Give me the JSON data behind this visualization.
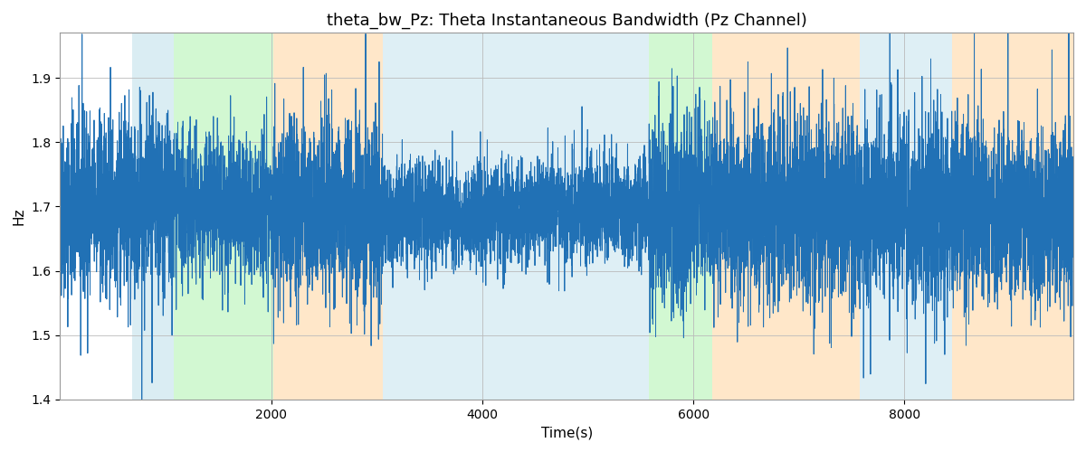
{
  "title": "theta_bw_Pz: Theta Instantaneous Bandwidth (Pz Channel)",
  "xlabel": "Time(s)",
  "ylabel": "Hz",
  "ylim": [
    1.4,
    1.97
  ],
  "xlim": [
    0,
    9600
  ],
  "line_color": "#2171b5",
  "line_width": 0.7,
  "background_color": "#ffffff",
  "grid_color": "#bbbbbb",
  "title_fontsize": 13,
  "label_fontsize": 11,
  "colored_regions": [
    {
      "xmin": 680,
      "xmax": 1080,
      "color": "#add8e6",
      "alpha": 0.45
    },
    {
      "xmin": 1080,
      "xmax": 2020,
      "color": "#90ee90",
      "alpha": 0.4
    },
    {
      "xmin": 2020,
      "xmax": 3060,
      "color": "#ffd59e",
      "alpha": 0.55
    },
    {
      "xmin": 3060,
      "xmax": 5580,
      "color": "#add8e6",
      "alpha": 0.4
    },
    {
      "xmin": 5580,
      "xmax": 6180,
      "color": "#90ee90",
      "alpha": 0.4
    },
    {
      "xmin": 6180,
      "xmax": 7580,
      "color": "#ffd59e",
      "alpha": 0.55
    },
    {
      "xmin": 7580,
      "xmax": 8450,
      "color": "#add8e6",
      "alpha": 0.4
    },
    {
      "xmin": 8450,
      "xmax": 9600,
      "color": "#ffd59e",
      "alpha": 0.55
    }
  ],
  "xticks": [
    2000,
    4000,
    6000,
    8000
  ],
  "yticks": [
    1.4,
    1.5,
    1.6,
    1.7,
    1.8,
    1.9
  ],
  "seed": 42,
  "n_points": 9600,
  "signal_mean": 1.695,
  "figsize": [
    12.0,
    5.0
  ],
  "dpi": 100
}
